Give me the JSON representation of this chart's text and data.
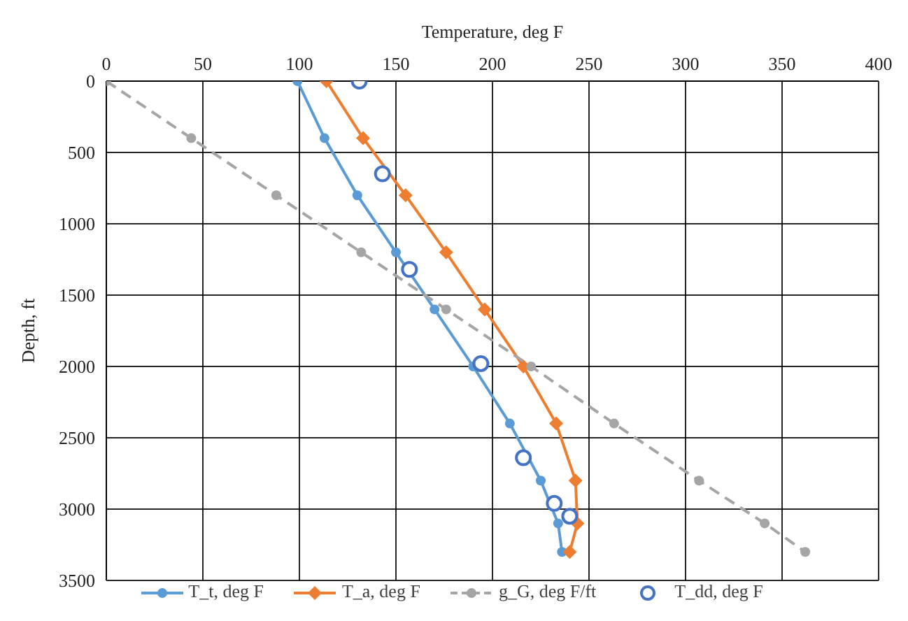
{
  "chart_data": {
    "type": "line",
    "xlabel": "Temperature, deg F",
    "ylabel": "Depth, ft",
    "xlim": [
      0,
      400
    ],
    "xticks": [
      0,
      50,
      100,
      150,
      200,
      250,
      300,
      350,
      400
    ],
    "ylim": [
      3500,
      0
    ],
    "yticks": [
      0,
      500,
      1000,
      1500,
      2000,
      2500,
      3000,
      3500
    ],
    "grid": true,
    "legend": "bottom",
    "series": [
      {
        "name": "T_t, deg F",
        "color": "#5b9bd5",
        "marker": "circle",
        "line_style": "solid",
        "x": [
          99,
          113,
          130,
          150,
          170,
          190,
          209,
          225,
          234,
          236
        ],
        "values": [
          0,
          400,
          800,
          1200,
          1600,
          2000,
          2400,
          2800,
          3100,
          3300
        ]
      },
      {
        "name": "T_a, deg F",
        "color": "#ed7d31",
        "marker": "diamond",
        "line_style": "solid",
        "x": [
          114,
          133,
          155,
          176,
          196,
          216,
          233,
          243,
          244,
          240
        ],
        "values": [
          0,
          400,
          800,
          1200,
          1600,
          2000,
          2400,
          2800,
          3100,
          3300
        ]
      },
      {
        "name": "g_G, deg F/ft",
        "color": "#a5a5a5",
        "marker": "circle",
        "line_style": "dashed",
        "x": [
          0,
          44,
          88,
          132,
          176,
          220,
          263,
          307,
          341,
          362
        ],
        "values": [
          0,
          400,
          800,
          1200,
          1600,
          2000,
          2400,
          2800,
          3100,
          3300
        ]
      },
      {
        "name": "T_dd, deg F",
        "type": "scatter",
        "color": "#4472c4",
        "marker": "circle",
        "x": [
          131,
          143,
          157,
          194,
          216,
          232,
          240
        ],
        "values": [
          0,
          650,
          1320,
          1980,
          2640,
          2960,
          3050
        ]
      }
    ]
  }
}
